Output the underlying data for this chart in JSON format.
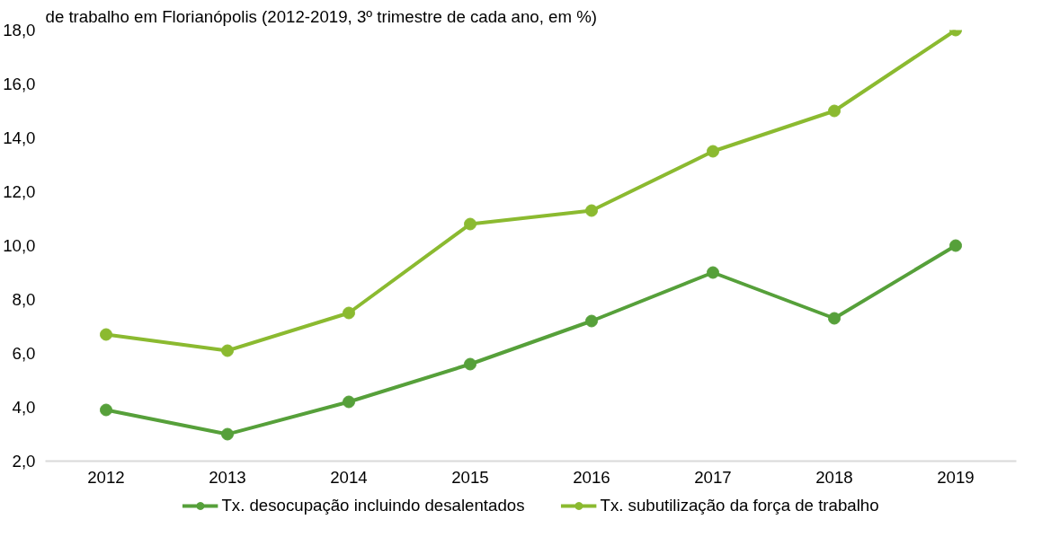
{
  "chart_data": {
    "type": "line",
    "title": "de trabalho em Florianópolis (2012-2019, 3º trimestre de cada ano, em %)",
    "categories": [
      "2012",
      "2013",
      "2014",
      "2015",
      "2016",
      "2017",
      "2018",
      "2019"
    ],
    "series": [
      {
        "name": "Tx. desocupação incluindo desalentados",
        "color": "#56a03a",
        "values": [
          3.9,
          3.0,
          4.2,
          5.6,
          7.2,
          9.0,
          7.3,
          10.0
        ]
      },
      {
        "name": "Tx. subutilização da força de trabalho",
        "color": "#8bba30",
        "values": [
          6.7,
          6.1,
          7.5,
          10.8,
          11.3,
          13.5,
          15.0,
          18.0
        ]
      }
    ],
    "ylim": [
      2,
      18
    ],
    "yticks": [
      {
        "value": 2,
        "label": "2,0"
      },
      {
        "value": 4,
        "label": "4,0"
      },
      {
        "value": 6,
        "label": "6,0"
      },
      {
        "value": 8,
        "label": "8,0"
      },
      {
        "value": 10,
        "label": "10,0"
      },
      {
        "value": 12,
        "label": "12,0"
      },
      {
        "value": 14,
        "label": "14,0"
      },
      {
        "value": 16,
        "label": "16,0"
      },
      {
        "value": 18,
        "label": "18,0"
      }
    ],
    "grid": false,
    "legend": "bottom",
    "marker": "circle",
    "line_style": "solid"
  }
}
